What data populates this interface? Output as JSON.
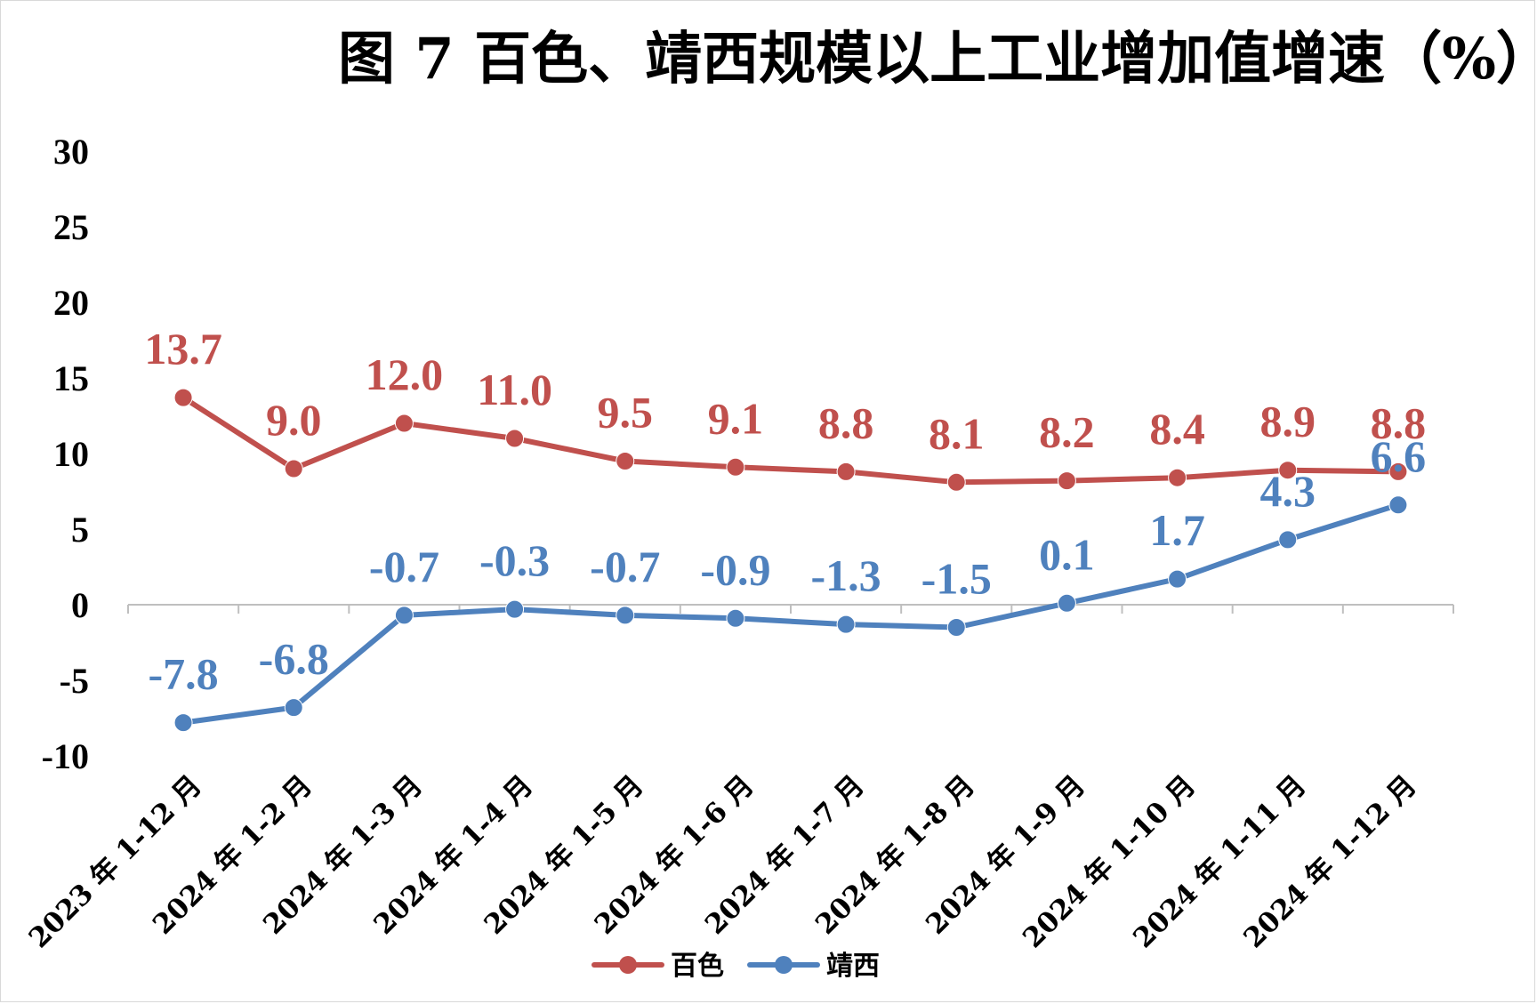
{
  "chart_data": {
    "type": "line",
    "title": "图 7  百色、靖西规模以上工业增加值增速（%）",
    "categories": [
      "2023 年 1-12 月",
      "2024 年 1-2 月",
      "2024 年 1-3 月",
      "2024 年 1-4 月",
      "2024 年 1-5 月",
      "2024 年 1-6 月",
      "2024 年 1-7 月",
      "2024 年 1-8 月",
      "2024 年 1-9 月",
      "2024 年 1-10 月",
      "2024 年 1-11 月",
      "2024 年 1-12 月"
    ],
    "series": [
      {
        "name": "百色",
        "color": "#c0504d",
        "values": [
          13.7,
          9.0,
          12.0,
          11.0,
          9.5,
          9.1,
          8.8,
          8.1,
          8.2,
          8.4,
          8.9,
          8.8
        ],
        "labels": [
          "13.7",
          "9.0",
          "12.0",
          "11.0",
          "9.5",
          "9.1",
          "8.8",
          "8.1",
          "8.2",
          "8.4",
          "8.9",
          "8.8"
        ]
      },
      {
        "name": "靖西",
        "color": "#4f81bd",
        "values": [
          -7.8,
          -6.8,
          -0.7,
          -0.3,
          -0.7,
          -0.9,
          -1.3,
          -1.5,
          0.1,
          1.7,
          4.3,
          6.6
        ],
        "labels": [
          "-7.8",
          "-6.8",
          "-0.7",
          "-0.3",
          "-0.7",
          "-0.9",
          "-1.3",
          "-1.5",
          "0.1",
          "1.7",
          "4.3",
          "6.6"
        ]
      }
    ],
    "xlabel": "",
    "ylabel": "",
    "ylim": [
      -10,
      30
    ],
    "yticks": [
      "30",
      "25",
      "20",
      "15",
      "10",
      "5",
      "0",
      "-5",
      "-10"
    ],
    "grid": false,
    "legend": "bottom"
  }
}
